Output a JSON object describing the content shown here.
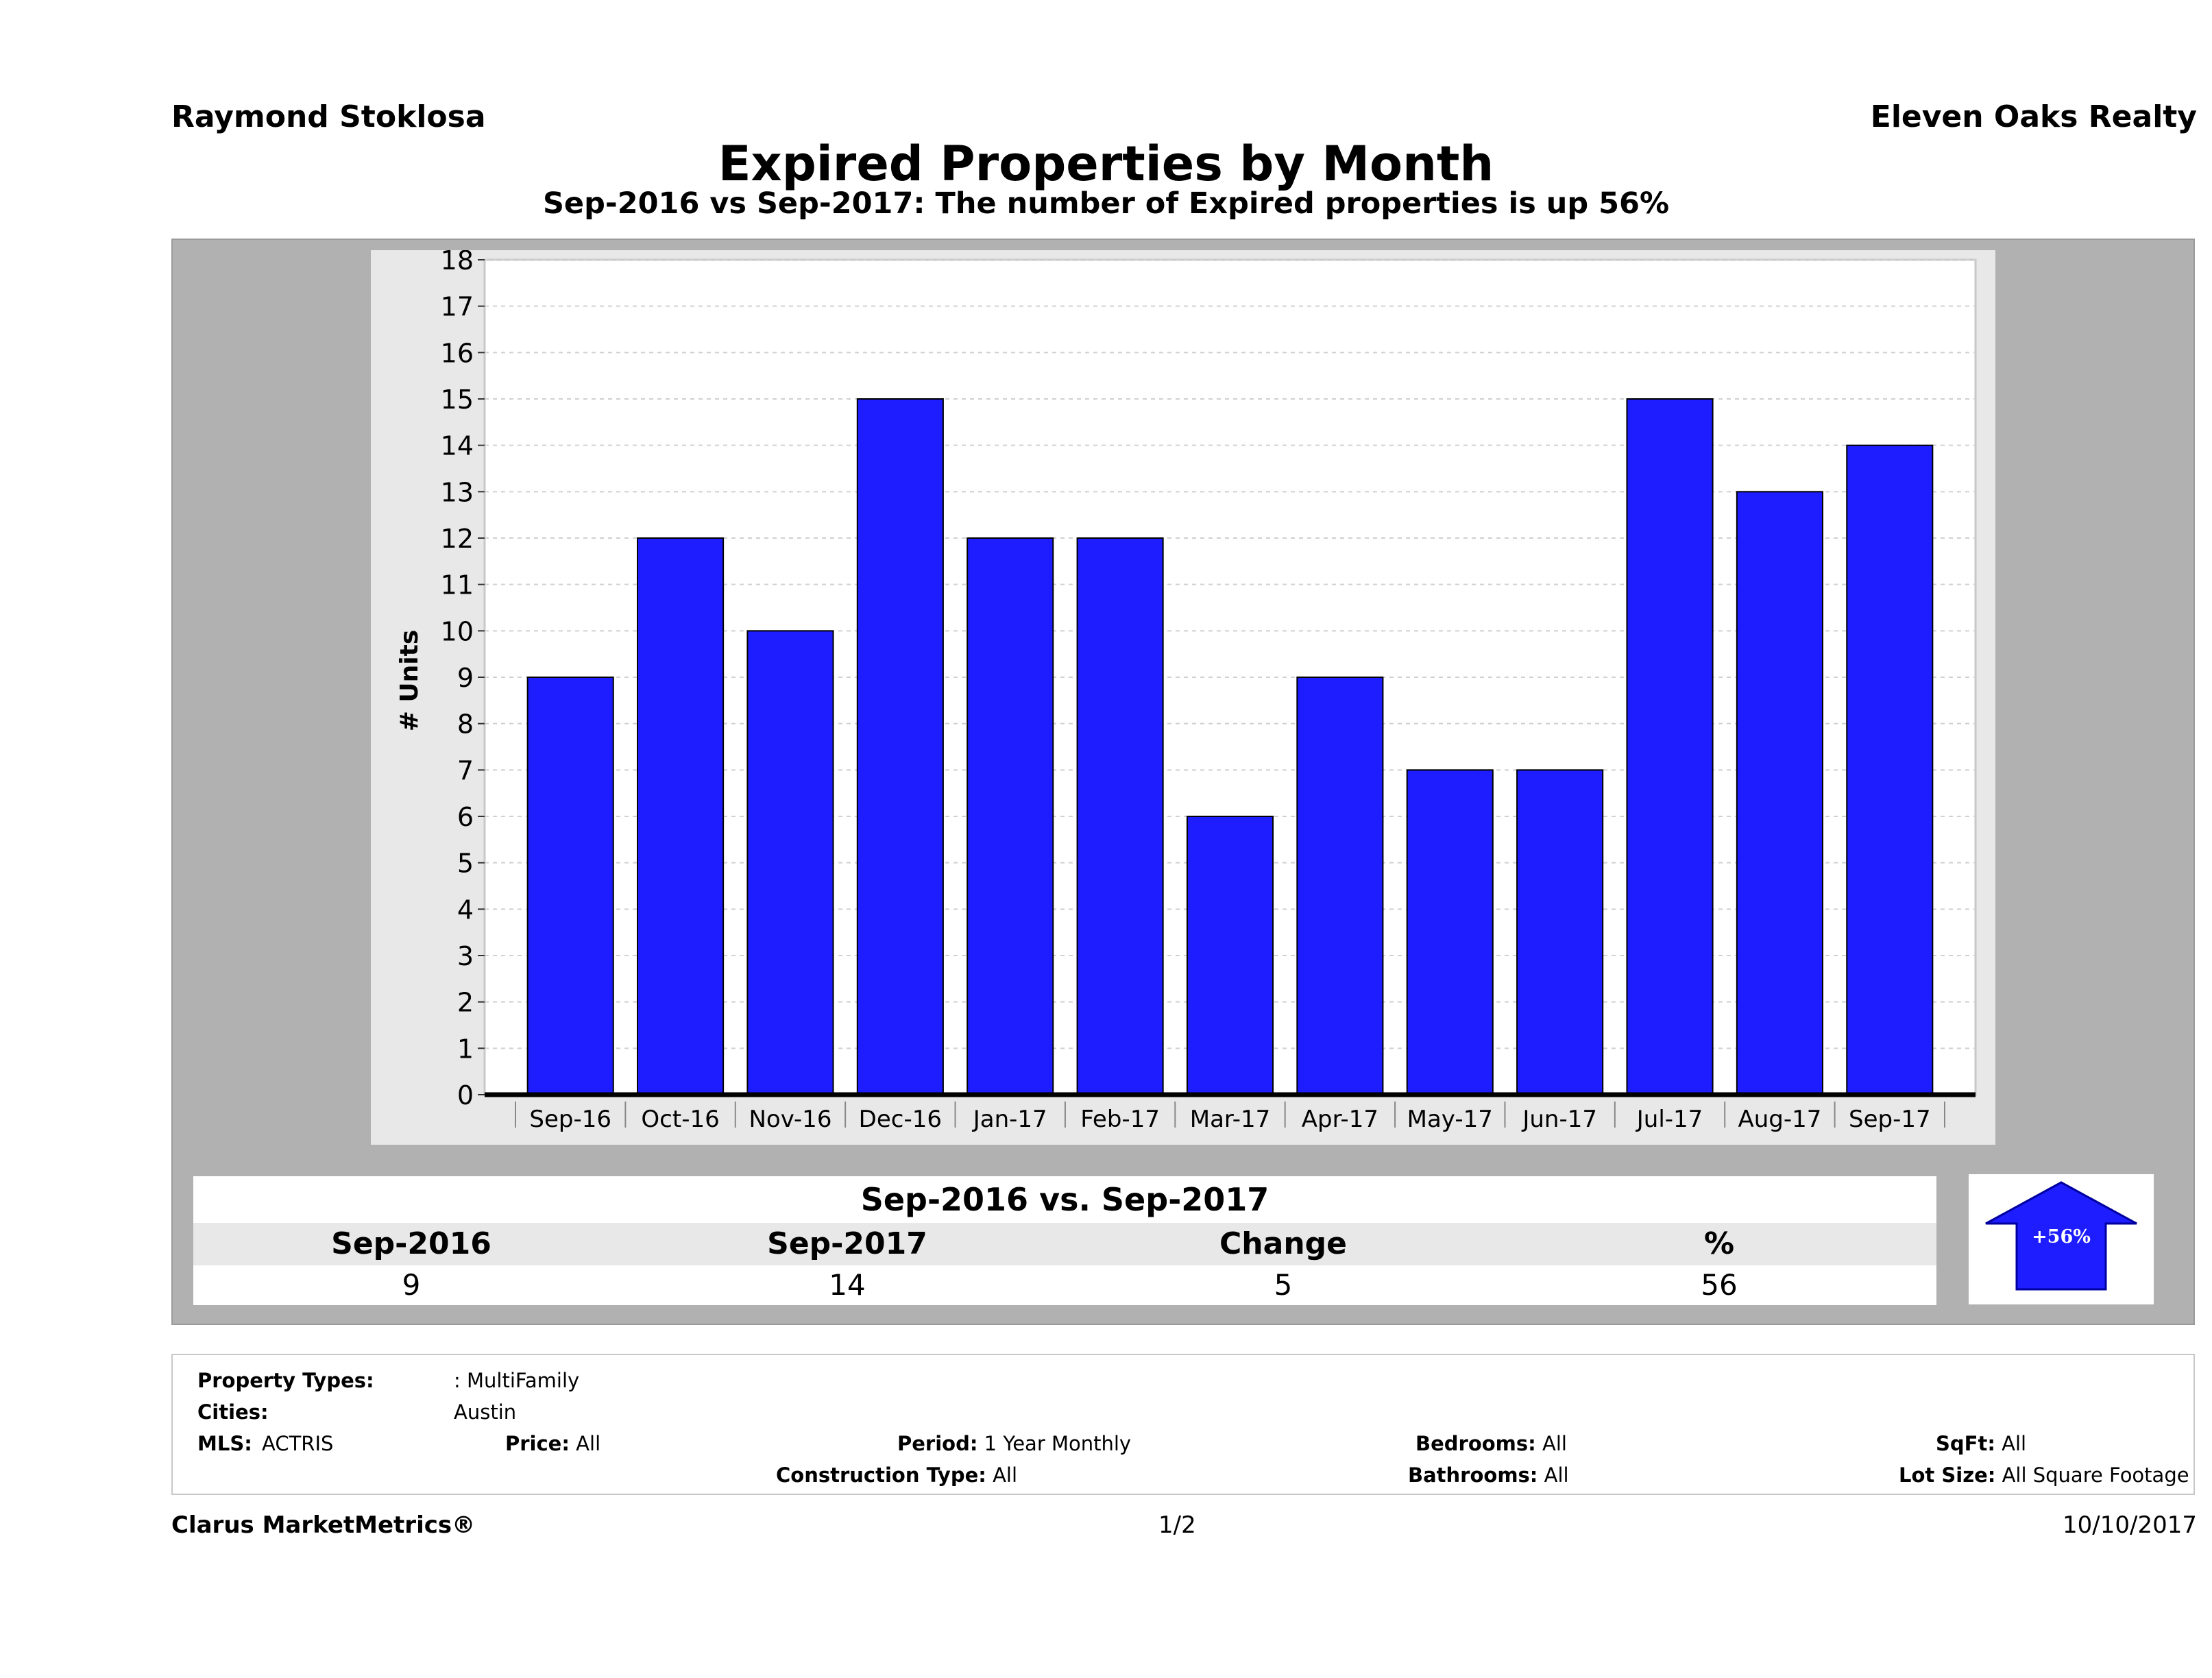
{
  "header": {
    "agent": "Raymond Stoklosa",
    "company": "Eleven Oaks Realty",
    "title": "Expired Properties by Month",
    "subtitle": "Sep-2016 vs Sep-2017: The number of Expired  properties is up 56%"
  },
  "chart_data": {
    "type": "bar",
    "title": "Expired Properties by Month",
    "subtitle": "Sep-2016 vs Sep-2017: The number of Expired  properties is up 56%",
    "ylabel": "# Units",
    "xlabel": "",
    "categories": [
      "Sep-16",
      "Oct-16",
      "Nov-16",
      "Dec-16",
      "Jan-17",
      "Feb-17",
      "Mar-17",
      "Apr-17",
      "May-17",
      "Jun-17",
      "Jul-17",
      "Aug-17",
      "Sep-17"
    ],
    "values": [
      9,
      12,
      10,
      15,
      12,
      12,
      6,
      9,
      7,
      7,
      15,
      13,
      14
    ],
    "ylim": [
      0,
      18
    ],
    "yticks": [
      0,
      1,
      2,
      3,
      4,
      5,
      6,
      7,
      8,
      9,
      10,
      11,
      12,
      13,
      14,
      15,
      16,
      17,
      18
    ],
    "grid": true,
    "bar_color": "#1d1dff"
  },
  "comparison": {
    "title": "Sep-2016 vs. Sep-2017",
    "headers": [
      "Sep-2016",
      "Sep-2017",
      "Change",
      "%"
    ],
    "values": [
      "9",
      "14",
      "5",
      "56"
    ],
    "badge": "+56%",
    "badge_direction": "up",
    "badge_color": "#1d1dff"
  },
  "filters": {
    "property_types_label": "Property Types:",
    "property_types_value": ": MultiFamily",
    "cities_label": "Cities:",
    "cities_value": "Austin",
    "mls_label": "MLS:",
    "mls_value": "ACTRIS",
    "price_label": "Price:",
    "price_value": "All",
    "period_label": "Period:",
    "period_value": "1 Year Monthly",
    "construction_label": "Construction Type:",
    "construction_value": "All",
    "bedrooms_label": "Bedrooms:",
    "bedrooms_value": "All",
    "bathrooms_label": "Bathrooms:",
    "bathrooms_value": "All",
    "sqft_label": "SqFt:",
    "sqft_value": "All",
    "lotsize_label": "Lot Size:",
    "lotsize_value": "All Square Footage"
  },
  "footer": {
    "brand": "Clarus MarketMetrics®",
    "page": "1/2",
    "date": "10/10/2017"
  }
}
